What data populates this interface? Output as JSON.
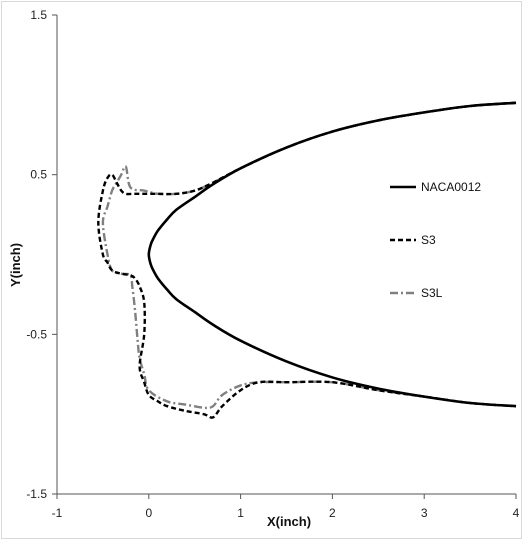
{
  "chart_data": {
    "type": "line",
    "title": "",
    "xlabel": "X(inch)",
    "ylabel": "Y(inch)",
    "xlim": [
      -1,
      4
    ],
    "ylim": [
      -1.5,
      1.5
    ],
    "x_ticks": [
      "-1",
      "0",
      "1",
      "2",
      "3",
      "4"
    ],
    "y_ticks": [
      "1.5",
      "0.5",
      "-0.5",
      "-1.5"
    ],
    "grid": false,
    "legend_position": "right",
    "series": [
      {
        "name": "NACA0012",
        "color": "#000000",
        "style": "solid",
        "x": [
          4.0,
          3.5,
          3.0,
          2.5,
          2.0,
          1.5,
          1.0,
          0.7,
          0.5,
          0.3,
          0.2,
          0.1,
          0.05,
          0.02,
          0.0,
          0.02,
          0.05,
          0.1,
          0.2,
          0.3,
          0.5,
          0.7,
          1.0,
          1.5,
          2.0,
          2.5,
          3.0,
          3.5,
          4.0
        ],
        "y": [
          0.95,
          0.93,
          0.89,
          0.84,
          0.77,
          0.67,
          0.54,
          0.44,
          0.36,
          0.28,
          0.22,
          0.15,
          0.1,
          0.06,
          0.0,
          -0.06,
          -0.1,
          -0.15,
          -0.22,
          -0.28,
          -0.36,
          -0.44,
          -0.54,
          -0.67,
          -0.77,
          -0.84,
          -0.89,
          -0.93,
          -0.95
        ]
      },
      {
        "name": "S3",
        "color": "#000000",
        "style": "dashed",
        "x": [
          4.0,
          3.5,
          3.0,
          2.5,
          2.0,
          1.5,
          1.0,
          0.7,
          0.5,
          0.3,
          0.1,
          -0.05,
          -0.15,
          -0.25,
          -0.3,
          -0.35,
          -0.4,
          -0.45,
          -0.5,
          -0.55,
          -0.5,
          -0.45,
          -0.4,
          -0.3,
          -0.2,
          -0.15,
          -0.1,
          -0.05,
          -0.05,
          -0.1,
          -0.05,
          0.0,
          0.1,
          0.2,
          0.4,
          0.6,
          0.7,
          0.8,
          1.0,
          1.2,
          1.5,
          2.0,
          2.5,
          3.0,
          3.5,
          4.0
        ],
        "y": [
          0.95,
          0.93,
          0.89,
          0.84,
          0.77,
          0.67,
          0.54,
          0.45,
          0.4,
          0.38,
          0.38,
          0.38,
          0.38,
          0.38,
          0.4,
          0.45,
          0.5,
          0.48,
          0.4,
          0.2,
          0.0,
          -0.05,
          -0.1,
          -0.12,
          -0.13,
          -0.15,
          -0.2,
          -0.3,
          -0.5,
          -0.7,
          -0.8,
          -0.88,
          -0.92,
          -0.95,
          -0.98,
          -1.0,
          -1.02,
          -0.95,
          -0.85,
          -0.8,
          -0.8,
          -0.8,
          -0.85,
          -0.89,
          -0.93,
          -0.95
        ]
      },
      {
        "name": "S3L",
        "color": "#808080",
        "style": "dashdot",
        "x": [
          4.0,
          3.5,
          3.0,
          2.5,
          2.0,
          1.5,
          1.0,
          0.7,
          0.5,
          0.3,
          0.1,
          -0.05,
          -0.2,
          -0.25,
          -0.3,
          -0.35,
          -0.4,
          -0.45,
          -0.5,
          -0.45,
          -0.4,
          -0.3,
          -0.2,
          -0.18,
          -0.15,
          -0.12,
          -0.1,
          -0.05,
          0.0,
          0.2,
          0.4,
          0.6,
          0.7,
          0.8,
          1.0,
          1.2,
          1.5,
          2.0,
          2.5,
          3.0,
          3.5,
          4.0
        ],
        "y": [
          0.95,
          0.93,
          0.89,
          0.84,
          0.77,
          0.67,
          0.54,
          0.45,
          0.4,
          0.38,
          0.38,
          0.4,
          0.42,
          0.55,
          0.5,
          0.45,
          0.4,
          0.3,
          0.2,
          0.0,
          -0.1,
          -0.12,
          -0.13,
          -0.2,
          -0.35,
          -0.55,
          -0.65,
          -0.75,
          -0.85,
          -0.92,
          -0.94,
          -0.96,
          -0.95,
          -0.88,
          -0.82,
          -0.8,
          -0.8,
          -0.8,
          -0.85,
          -0.89,
          -0.93,
          -0.95
        ]
      }
    ]
  }
}
